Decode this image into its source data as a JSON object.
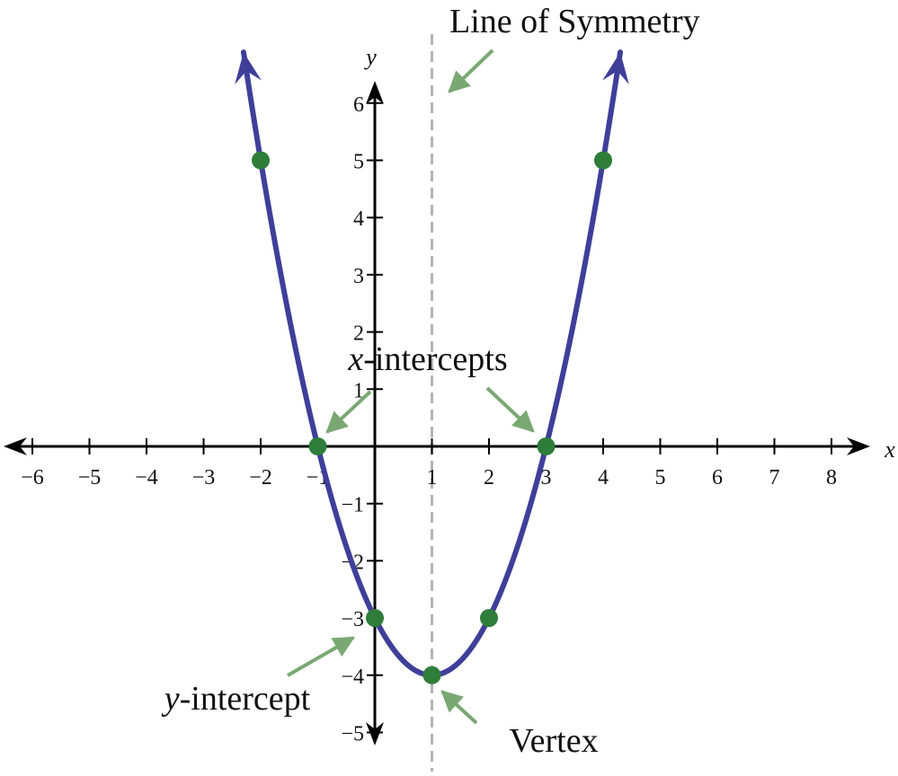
{
  "chart_data": {
    "type": "line",
    "function": "y = x^2 - 2x - 3",
    "xlabel": "x",
    "ylabel": "y",
    "xlim": [
      -6.3,
      8.6
    ],
    "ylim": [
      -5.2,
      6.8
    ],
    "x_ticks": [
      -6,
      -5,
      -4,
      -3,
      -2,
      -1,
      0,
      1,
      2,
      3,
      4,
      5,
      6,
      7,
      8
    ],
    "x_tick_labels": [
      "−6",
      "−5",
      "−4",
      "−3",
      "−2",
      "−1",
      "",
      "1",
      "2",
      "3",
      "4",
      "5",
      "6",
      "7",
      "8"
    ],
    "y_ticks": [
      -5,
      -4,
      -3,
      -2,
      -1,
      1,
      2,
      3,
      4,
      5,
      6
    ],
    "y_tick_labels": [
      "−5",
      "−4",
      "−3",
      "−2",
      "−1",
      "1",
      "2",
      "3",
      "4",
      "5",
      "6"
    ],
    "curve_x_range": [
      -2.3,
      4.3
    ],
    "points": [
      {
        "x": -2,
        "y": 5
      },
      {
        "x": -1,
        "y": 0
      },
      {
        "x": 0,
        "y": -3
      },
      {
        "x": 1,
        "y": -4
      },
      {
        "x": 2,
        "y": -3
      },
      {
        "x": 3,
        "y": 0
      },
      {
        "x": 4,
        "y": 5
      }
    ],
    "symmetry_line_x": 1,
    "annotations": {
      "symmetry": "Line of Symmetry",
      "x_intercepts_var": "x",
      "x_intercepts_rest": "-intercepts",
      "y_intercept_var": "y",
      "y_intercept_rest": "-intercept",
      "vertex": "Vertex"
    },
    "colors": {
      "curve": "#3f3f9a",
      "points": "#2e7d3a",
      "symmetry_line": "#b4b4b4",
      "arrows": "#7aa873",
      "axes": "#000000"
    },
    "grid": false
  }
}
